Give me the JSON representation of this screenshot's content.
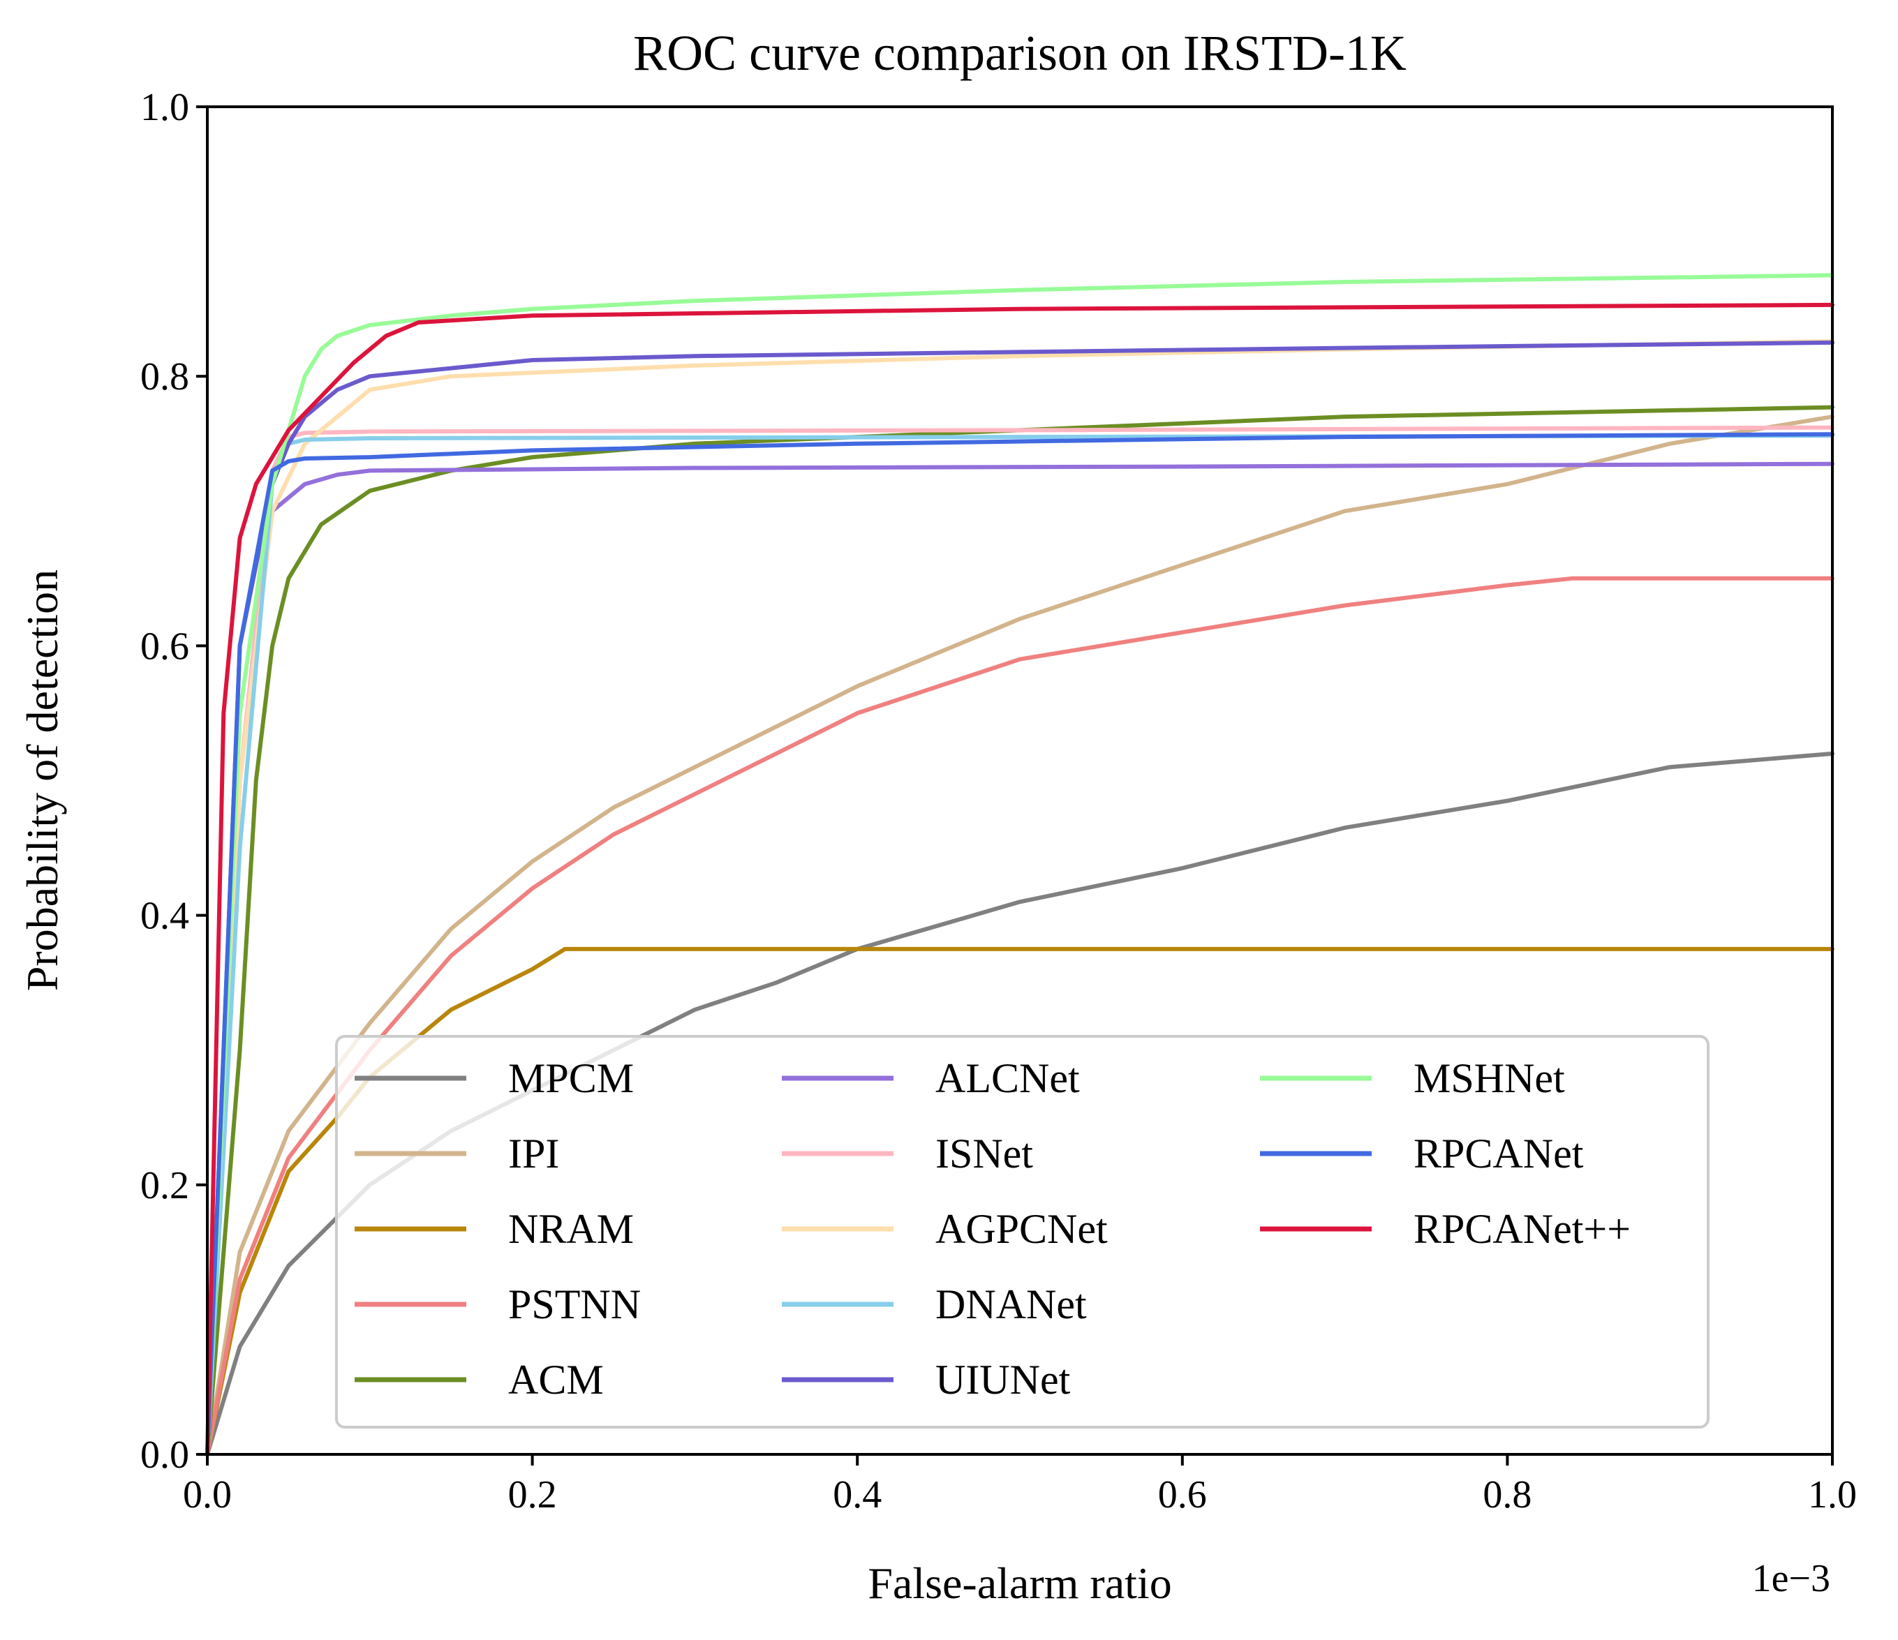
{
  "chart_data": {
    "type": "line",
    "title": "ROC curve comparison on IRSTD-1K",
    "xlabel": "False-alarm ratio",
    "ylabel": "Probability of detection",
    "x_offset_label": "1e−3",
    "xlim": [
      0,
      1.0
    ],
    "ylim": [
      0,
      1.0
    ],
    "xticks": [
      "0.0",
      "0.2",
      "0.4",
      "0.6",
      "0.8",
      "1.0"
    ],
    "yticks": [
      "0.0",
      "0.2",
      "0.4",
      "0.6",
      "0.8",
      "1.0"
    ],
    "grid": false,
    "legend_position": "lower-center",
    "legend_columns": 3,
    "series": [
      {
        "name": "MPCM",
        "color": "#808080",
        "x": [
          0,
          0.02,
          0.05,
          0.1,
          0.15,
          0.2,
          0.25,
          0.3,
          0.35,
          0.4,
          0.5,
          0.6,
          0.7,
          0.8,
          0.9,
          1.0
        ],
        "y": [
          0,
          0.08,
          0.14,
          0.2,
          0.24,
          0.27,
          0.3,
          0.33,
          0.35,
          0.375,
          0.41,
          0.435,
          0.465,
          0.485,
          0.51,
          0.52
        ]
      },
      {
        "name": "IPI",
        "color": "#D2B48C",
        "x": [
          0,
          0.02,
          0.05,
          0.1,
          0.15,
          0.2,
          0.25,
          0.3,
          0.35,
          0.4,
          0.5,
          0.6,
          0.7,
          0.8,
          0.9,
          1.0
        ],
        "y": [
          0,
          0.15,
          0.24,
          0.32,
          0.39,
          0.44,
          0.48,
          0.51,
          0.54,
          0.57,
          0.62,
          0.66,
          0.7,
          0.72,
          0.75,
          0.77
        ]
      },
      {
        "name": "NRAM",
        "color": "#B8860B",
        "x": [
          0,
          0.02,
          0.05,
          0.08,
          0.1,
          0.15,
          0.2,
          0.22,
          0.5,
          1.0
        ],
        "y": [
          0,
          0.12,
          0.21,
          0.25,
          0.28,
          0.33,
          0.36,
          0.375,
          0.375,
          0.375
        ]
      },
      {
        "name": "PSTNN",
        "color": "#F08080",
        "x": [
          0,
          0.02,
          0.05,
          0.1,
          0.15,
          0.2,
          0.25,
          0.3,
          0.35,
          0.4,
          0.5,
          0.6,
          0.7,
          0.8,
          0.84,
          1.0
        ],
        "y": [
          0,
          0.13,
          0.22,
          0.3,
          0.37,
          0.42,
          0.46,
          0.49,
          0.52,
          0.55,
          0.59,
          0.61,
          0.63,
          0.645,
          0.65,
          0.65
        ]
      },
      {
        "name": "ACM",
        "color": "#6B8E23",
        "x": [
          0,
          0.02,
          0.03,
          0.04,
          0.05,
          0.07,
          0.1,
          0.15,
          0.2,
          0.3,
          0.5,
          0.7,
          1.0
        ],
        "y": [
          0,
          0.3,
          0.5,
          0.6,
          0.65,
          0.69,
          0.715,
          0.73,
          0.74,
          0.75,
          0.76,
          0.77,
          0.777
        ]
      },
      {
        "name": "ALCNet",
        "color": "#9370DB",
        "x": [
          0,
          0.02,
          0.04,
          0.06,
          0.08,
          0.1,
          0.3,
          0.6,
          1.0
        ],
        "y": [
          0,
          0.5,
          0.7,
          0.72,
          0.727,
          0.73,
          0.732,
          0.733,
          0.735
        ]
      },
      {
        "name": "ISNet",
        "color": "#FFB6C1",
        "x": [
          0,
          0.02,
          0.04,
          0.05,
          0.06,
          0.1,
          0.5,
          1.0
        ],
        "y": [
          0,
          0.5,
          0.73,
          0.755,
          0.758,
          0.759,
          0.76,
          0.762
        ]
      },
      {
        "name": "AGPCNet",
        "color": "#FFDEAD",
        "x": [
          0,
          0.02,
          0.04,
          0.06,
          0.08,
          0.1,
          0.15,
          0.3,
          0.5,
          0.7,
          1.0
        ],
        "y": [
          0,
          0.5,
          0.7,
          0.75,
          0.77,
          0.79,
          0.8,
          0.808,
          0.815,
          0.82,
          0.826
        ]
      },
      {
        "name": "DNANet",
        "color": "#87CEEB",
        "x": [
          0,
          0.02,
          0.04,
          0.05,
          0.06,
          0.1,
          0.5,
          1.0
        ],
        "y": [
          0,
          0.45,
          0.72,
          0.75,
          0.753,
          0.754,
          0.755,
          0.756
        ]
      },
      {
        "name": "UIUNet",
        "color": "#6A5ACD",
        "x": [
          0,
          0.02,
          0.04,
          0.05,
          0.06,
          0.08,
          0.1,
          0.15,
          0.2,
          0.3,
          0.5,
          0.7,
          1.0
        ],
        "y": [
          0,
          0.6,
          0.72,
          0.75,
          0.77,
          0.79,
          0.8,
          0.806,
          0.812,
          0.815,
          0.818,
          0.821,
          0.825
        ]
      },
      {
        "name": "MSHNet",
        "color": "#98FB98",
        "x": [
          0,
          0.02,
          0.04,
          0.06,
          0.07,
          0.08,
          0.1,
          0.15,
          0.2,
          0.3,
          0.5,
          0.7,
          1.0
        ],
        "y": [
          0,
          0.55,
          0.72,
          0.8,
          0.82,
          0.83,
          0.838,
          0.845,
          0.85,
          0.856,
          0.864,
          0.87,
          0.875
        ]
      },
      {
        "name": "RPCANet",
        "color": "#4169E1",
        "x": [
          0,
          0.02,
          0.04,
          0.05,
          0.06,
          0.1,
          0.2,
          0.4,
          0.7,
          1.0
        ],
        "y": [
          0,
          0.6,
          0.73,
          0.737,
          0.739,
          0.74,
          0.745,
          0.75,
          0.755,
          0.757
        ]
      },
      {
        "name": "RPCANet++",
        "color": "#DC143C",
        "x": [
          0,
          0.01,
          0.02,
          0.03,
          0.05,
          0.07,
          0.09,
          0.11,
          0.13,
          0.2,
          0.5,
          1.0
        ],
        "y": [
          0,
          0.55,
          0.68,
          0.72,
          0.76,
          0.785,
          0.81,
          0.83,
          0.84,
          0.845,
          0.85,
          0.853
        ]
      }
    ]
  }
}
